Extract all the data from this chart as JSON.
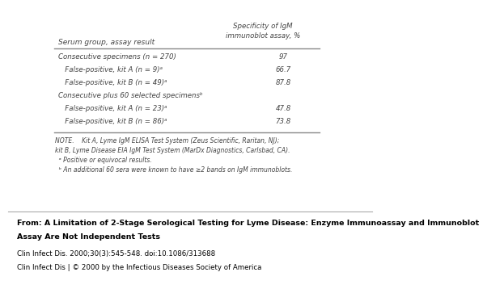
{
  "col_header_line1": "Specificity of IgM",
  "col_header_line2": "immunoblot assay, %",
  "col_left_header": "Serum group, assay result",
  "rows": [
    {
      "label": "Consecutive specimens (n = 270)",
      "indent": 0,
      "value": "97"
    },
    {
      "label": "   False-positive, kit A (n = 9)ᵃ",
      "indent": 0,
      "value": "66.7"
    },
    {
      "label": "   False-positive, kit B (n = 49)ᵃ",
      "indent": 0,
      "value": "87.8"
    },
    {
      "label": "Consecutive plus 60 selected specimensᵇ",
      "indent": 0,
      "value": ""
    },
    {
      "label": "   False-positive, kit A (n = 23)ᵃ",
      "indent": 0,
      "value": "47.8"
    },
    {
      "label": "   False-positive, kit B (n = 86)ᵃ",
      "indent": 0,
      "value": "73.8"
    }
  ],
  "note_lines": [
    "NOTE.    Kit A, Lyme IgM ELISA Test System (Zeus Scientific, Raritan, NJ);",
    "kit B, Lyme Disease EIA IgM Test System (MarDx Diagnostics, Carlsbad, CA).",
    "  ᵃ Positive or equivocal results.",
    "  ᵇ An additional 60 sera were known to have ≥2 bands on IgM immunoblots."
  ],
  "footer_lines": [
    "From: A Limitation of 2-Stage Serological Testing for Lyme Disease: Enzyme Immunoassay and Immunoblot",
    "Assay Are Not Independent Tests",
    "Clin Infect Dis. 2000;30(3):545-548. doi:10.1086/313688",
    "Clin Infect Dis | © 2000 by the Infectious Diseases Society of America"
  ],
  "bg_color": "#ffffff",
  "footer_bg_color": "#d8d8d8",
  "text_color": "#444444",
  "footer_text_color": "#000000",
  "line_color": "#888888"
}
